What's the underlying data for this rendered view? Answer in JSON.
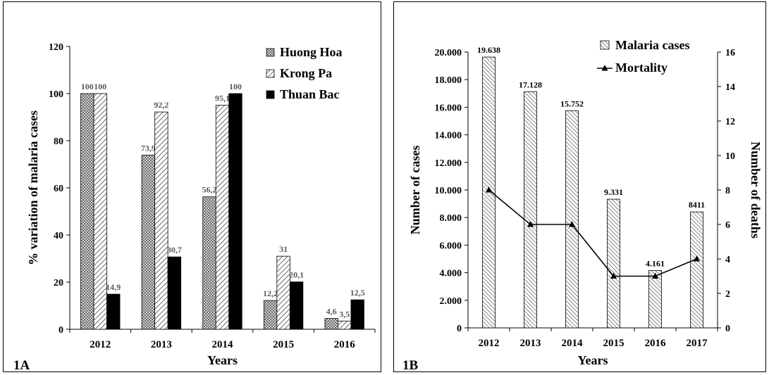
{
  "chart_data": [
    {
      "id": "1A",
      "type": "bar",
      "panel_label": "1A",
      "categories": [
        "2012",
        "2013",
        "2014",
        "2015",
        "2016"
      ],
      "series": [
        {
          "name": "Huong Hoa",
          "values": [
            100,
            73.9,
            56.2,
            12.2,
            4.6
          ],
          "labels": [
            "100",
            "73,9",
            "56,2",
            "12,2",
            "4,6"
          ],
          "pattern": "checker-gray"
        },
        {
          "name": "Krong Pa",
          "values": [
            100,
            92.2,
            95.1,
            31,
            3.5
          ],
          "labels": [
            "100",
            "92,2",
            "95,1",
            "31",
            "3,5"
          ],
          "pattern": "diagonal-hatch"
        },
        {
          "name": "Thuan Bac",
          "values": [
            14.9,
            30.7,
            100,
            20.1,
            12.5
          ],
          "labels": [
            "14,9",
            "30,7",
            "100",
            "20,1",
            "12,5"
          ],
          "pattern": "solid-black"
        }
      ],
      "xlabel": "Years",
      "ylabel": "% variation of malaria cases",
      "ylim": [
        0,
        120
      ],
      "yticks": [
        "0",
        "20",
        "40",
        "60",
        "80",
        "100",
        "120"
      ],
      "legend_position": "top-right",
      "grid": false
    },
    {
      "id": "1B",
      "type": "bar",
      "panel_label": "1B",
      "categories": [
        "2012",
        "2013",
        "2014",
        "2015",
        "2016",
        "2017"
      ],
      "series": [
        {
          "name": "Malaria cases",
          "kind": "bar",
          "axis": "left",
          "values": [
            19638,
            17128,
            15752,
            9331,
            4161,
            8411
          ],
          "labels": [
            "19.638",
            "17.128",
            "15.752",
            "9.331",
            "4.161",
            "8411"
          ],
          "pattern": "diagonal-hatch-dense"
        },
        {
          "name": "Mortality",
          "kind": "line",
          "axis": "right",
          "marker": "triangle",
          "values": [
            8,
            6,
            6,
            3,
            3,
            4
          ]
        }
      ],
      "xlabel": "Years",
      "ylabel": "Number of cases",
      "y2label": "Number of deaths",
      "ylim": [
        0,
        20000
      ],
      "y2lim": [
        0,
        16
      ],
      "yticks": [
        "0",
        "2.000",
        "4.000",
        "6.000",
        "8.000",
        "10.000",
        "12.000",
        "14.000",
        "16.000",
        "18.000",
        "20.000"
      ],
      "y2ticks": [
        "0",
        "2",
        "4",
        "6",
        "8",
        "10",
        "12",
        "14",
        "16"
      ],
      "legend_position": "top-center",
      "grid": false
    }
  ],
  "colors": {
    "checker": "#7f7f7f",
    "hatch": "#595959",
    "solid": "#000000",
    "axis": "#000000"
  }
}
